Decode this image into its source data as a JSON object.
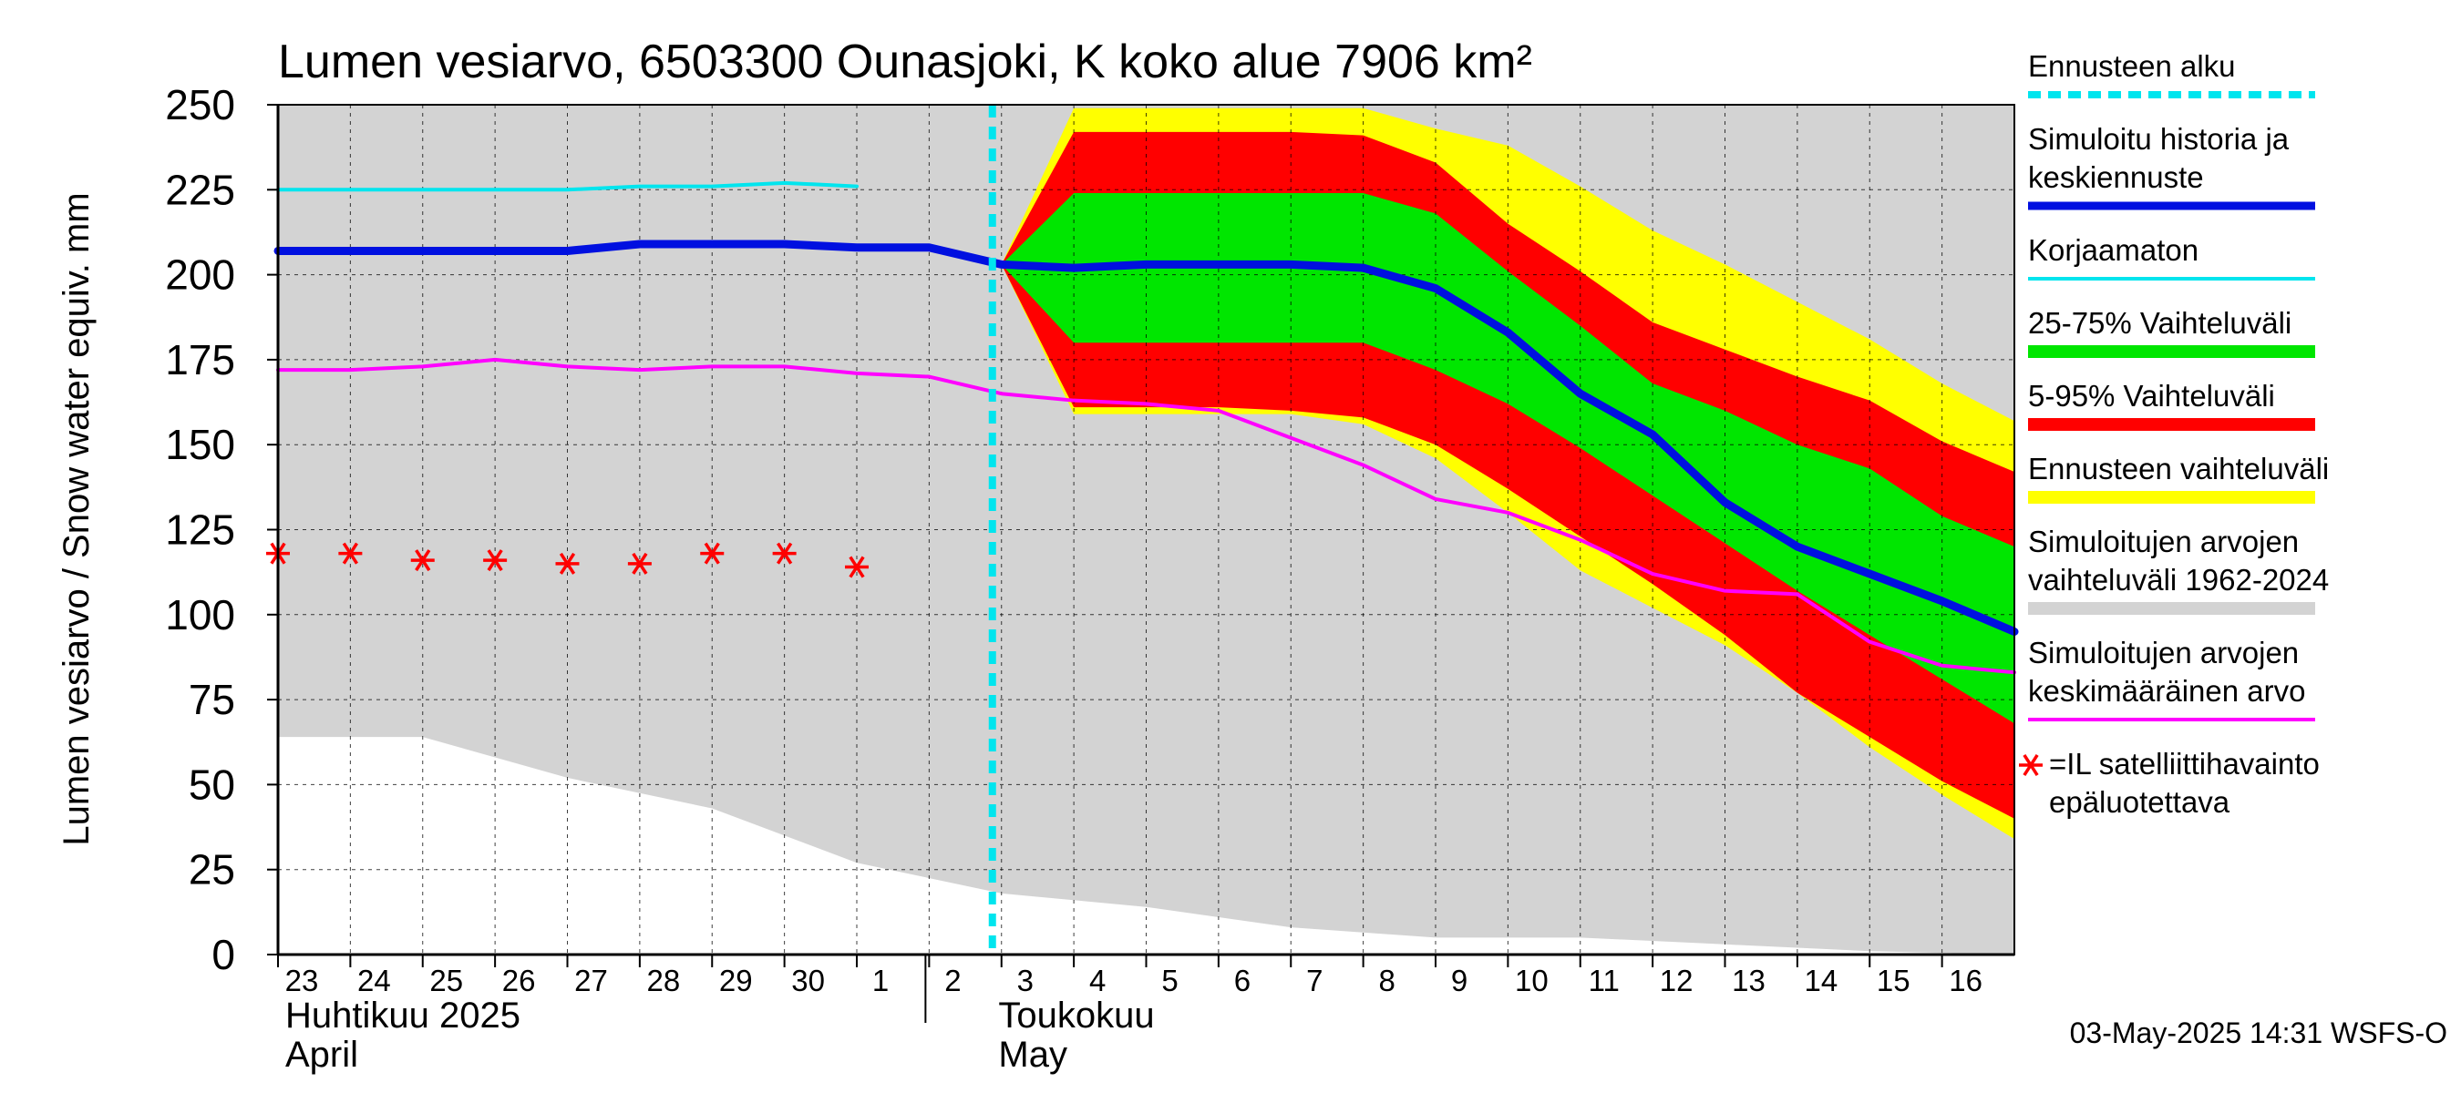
{
  "chart_data": {
    "type": "area",
    "title": "Lumen vesiarvo, 6503300 Ounasjoki, K koko alue 7906 km²",
    "ylabel": "Lumen vesiarvo / Snow water equiv.    mm",
    "ylim": [
      0,
      250
    ],
    "yticks": [
      0,
      25,
      50,
      75,
      100,
      125,
      150,
      175,
      200,
      225,
      250
    ],
    "x_day_index_range": [
      0,
      24
    ],
    "day_labels": [
      "23",
      "24",
      "25",
      "26",
      "27",
      "28",
      "29",
      "30",
      "1",
      "2",
      "3",
      "4",
      "5",
      "6",
      "7",
      "8",
      "9",
      "10",
      "11",
      "12",
      "13",
      "14",
      "15",
      "16"
    ],
    "month_labels": [
      {
        "fi": "Huhtikuu  2025",
        "en": "April",
        "start_index": 0
      },
      {
        "fi": "Toukokuu",
        "en": "May",
        "start_index": 9
      }
    ],
    "forecast_start_index": 10,
    "series": {
      "historical_range": {
        "name": "Simuloitujen arvojen vaihteluväli 1962-2024",
        "color": "#d3d3d3",
        "x": [
          0,
          2,
          4,
          6,
          8,
          10,
          12,
          14,
          16,
          18,
          20,
          22,
          24
        ],
        "upper": [
          250,
          250,
          250,
          250,
          250,
          250,
          250,
          250,
          250,
          250,
          250,
          250,
          250
        ],
        "lower": [
          64,
          64,
          52,
          43,
          27,
          18,
          14,
          8,
          5,
          5,
          3,
          1,
          0
        ]
      },
      "forecast_range": {
        "name": "Ennusteen vaihteluväli",
        "color": "#ffff00",
        "x": [
          10,
          11,
          12,
          13,
          14,
          15,
          16,
          17,
          18,
          19,
          20,
          21,
          22,
          23,
          24
        ],
        "upper": [
          203,
          249,
          249,
          249,
          249,
          249,
          243,
          238,
          226,
          213,
          203,
          192,
          181,
          168,
          157
        ],
        "lower": [
          203,
          159,
          159,
          159,
          159,
          156,
          146,
          130,
          113,
          102,
          91,
          77,
          61,
          47,
          34
        ]
      },
      "p5_95": {
        "name": "5-95% Vaihteluväli",
        "color": "#ff0000",
        "x": [
          10,
          11,
          12,
          13,
          14,
          15,
          16,
          17,
          18,
          19,
          20,
          21,
          22,
          23,
          24
        ],
        "upper": [
          203,
          242,
          242,
          242,
          242,
          241,
          233,
          215,
          201,
          186,
          178,
          170,
          163,
          151,
          142
        ],
        "lower": [
          203,
          161,
          161,
          161,
          160,
          158,
          150,
          137,
          123,
          109,
          94,
          77,
          64,
          51,
          40
        ]
      },
      "p25_75": {
        "name": "25-75% Vaihteluväli",
        "color": "#00e600",
        "x": [
          10,
          11,
          12,
          13,
          14,
          15,
          16,
          17,
          18,
          19,
          20,
          21,
          22,
          23,
          24
        ],
        "upper": [
          203,
          224,
          224,
          224,
          224,
          224,
          218,
          201,
          185,
          168,
          160,
          150,
          143,
          129,
          120
        ],
        "lower": [
          203,
          180,
          180,
          180,
          180,
          180,
          172,
          162,
          149,
          135,
          121,
          107,
          94,
          81,
          68
        ]
      },
      "mean_historical": {
        "name": "Simuloitujen arvojen keskimääräinen arvo",
        "color": "#ff00ff",
        "x": [
          0,
          1,
          2,
          3,
          4,
          5,
          6,
          7,
          8,
          9,
          10,
          11,
          12,
          13,
          14,
          15,
          16,
          17,
          18,
          19,
          20,
          21,
          22,
          23,
          24
        ],
        "values": [
          172,
          172,
          173,
          175,
          173,
          172,
          173,
          173,
          171,
          170,
          165,
          163,
          162,
          160,
          152,
          144,
          134,
          130,
          122,
          112,
          107,
          106,
          92,
          85,
          83
        ]
      },
      "uncorrected": {
        "name": "Korjaamaton",
        "color": "#00e5ee",
        "x": [
          0,
          1,
          2,
          3,
          4,
          5,
          6,
          7,
          8
        ],
        "values": [
          225,
          225,
          225,
          225,
          225,
          226,
          226,
          227,
          226
        ]
      },
      "simulated": {
        "name": "Simuloitu historia ja keskiennuste",
        "color": "#0010e0",
        "x": [
          0,
          1,
          2,
          3,
          4,
          5,
          6,
          7,
          8,
          9,
          10,
          11,
          12,
          13,
          14,
          15,
          16,
          17,
          18,
          19,
          20,
          21,
          22,
          23,
          24
        ],
        "values": [
          207,
          207,
          207,
          207,
          207,
          209,
          209,
          209,
          208,
          208,
          203,
          202,
          203,
          203,
          203,
          202,
          196,
          183,
          165,
          153,
          133,
          120,
          112,
          104,
          95
        ]
      },
      "satellite": {
        "name": "=IL satelliittihavainto epäluotettava",
        "color": "#ff0000",
        "x": [
          0,
          1,
          2,
          3,
          4,
          5,
          6,
          7,
          8
        ],
        "values": [
          118,
          118,
          116,
          116,
          115,
          115,
          118,
          118,
          114
        ]
      }
    }
  },
  "legend": [
    {
      "key": "forecast_start",
      "lines": [
        "Ennusteen alku"
      ],
      "color": "#00e5ee",
      "style": "dashed"
    },
    {
      "key": "simulated",
      "lines": [
        "Simuloitu historia ja",
        "keskiennuste"
      ],
      "color": "#0010e0",
      "style": "thick"
    },
    {
      "key": "uncorrected",
      "lines": [
        "Korjaamaton"
      ],
      "color": "#00e5ee",
      "style": "thin"
    },
    {
      "key": "p25_75",
      "lines": [
        "25-75% Vaihteluväli"
      ],
      "color": "#00e600",
      "style": "band"
    },
    {
      "key": "p5_95",
      "lines": [
        "5-95% Vaihteluväli"
      ],
      "color": "#ff0000",
      "style": "band"
    },
    {
      "key": "forecast_range",
      "lines": [
        "Ennusteen vaihteluväli"
      ],
      "color": "#ffff00",
      "style": "band"
    },
    {
      "key": "historical_range",
      "lines": [
        "Simuloitujen arvojen",
        "vaihteluväli 1962-2024"
      ],
      "color": "#d3d3d3",
      "style": "band"
    },
    {
      "key": "mean_historical",
      "lines": [
        "Simuloitujen arvojen",
        "keskimääräinen arvo"
      ],
      "color": "#ff00ff",
      "style": "thin"
    },
    {
      "key": "satellite",
      "lines": [
        "=IL satelliittihavainto",
        "epäluotettava"
      ],
      "color": "#ff0000",
      "style": "star"
    }
  ],
  "footer": "03-May-2025 14:31 WSFS-O"
}
